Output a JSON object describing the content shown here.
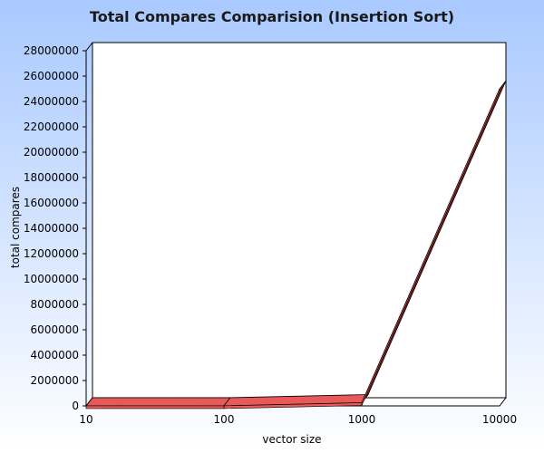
{
  "chart_data": {
    "type": "line",
    "title": "Total Compares Comparision (Insertion Sort)",
    "xlabel": "vector size",
    "ylabel": "total compares",
    "x": [
      "10",
      "100",
      "1000",
      "10000"
    ],
    "series": [
      {
        "values": [
          54,
          4950,
          249500,
          24995000
        ]
      }
    ],
    "ylim": [
      0,
      28000000
    ],
    "yticks": [
      "0",
      "2000000",
      "4000000",
      "6000000",
      "8000000",
      "10000000",
      "12000000",
      "14000000",
      "16000000",
      "18000000",
      "20000000",
      "22000000",
      "24000000",
      "26000000",
      "28000000"
    ],
    "grid": false,
    "legend": "none",
    "three_d": true,
    "colors": {
      "background_top": "#a9c9ff",
      "background_bottom": "#ffffff",
      "plot_background": "#ffffff",
      "line_front": "#e85a5a",
      "line_top": "#8a1f1f",
      "axis": "#000000"
    }
  }
}
